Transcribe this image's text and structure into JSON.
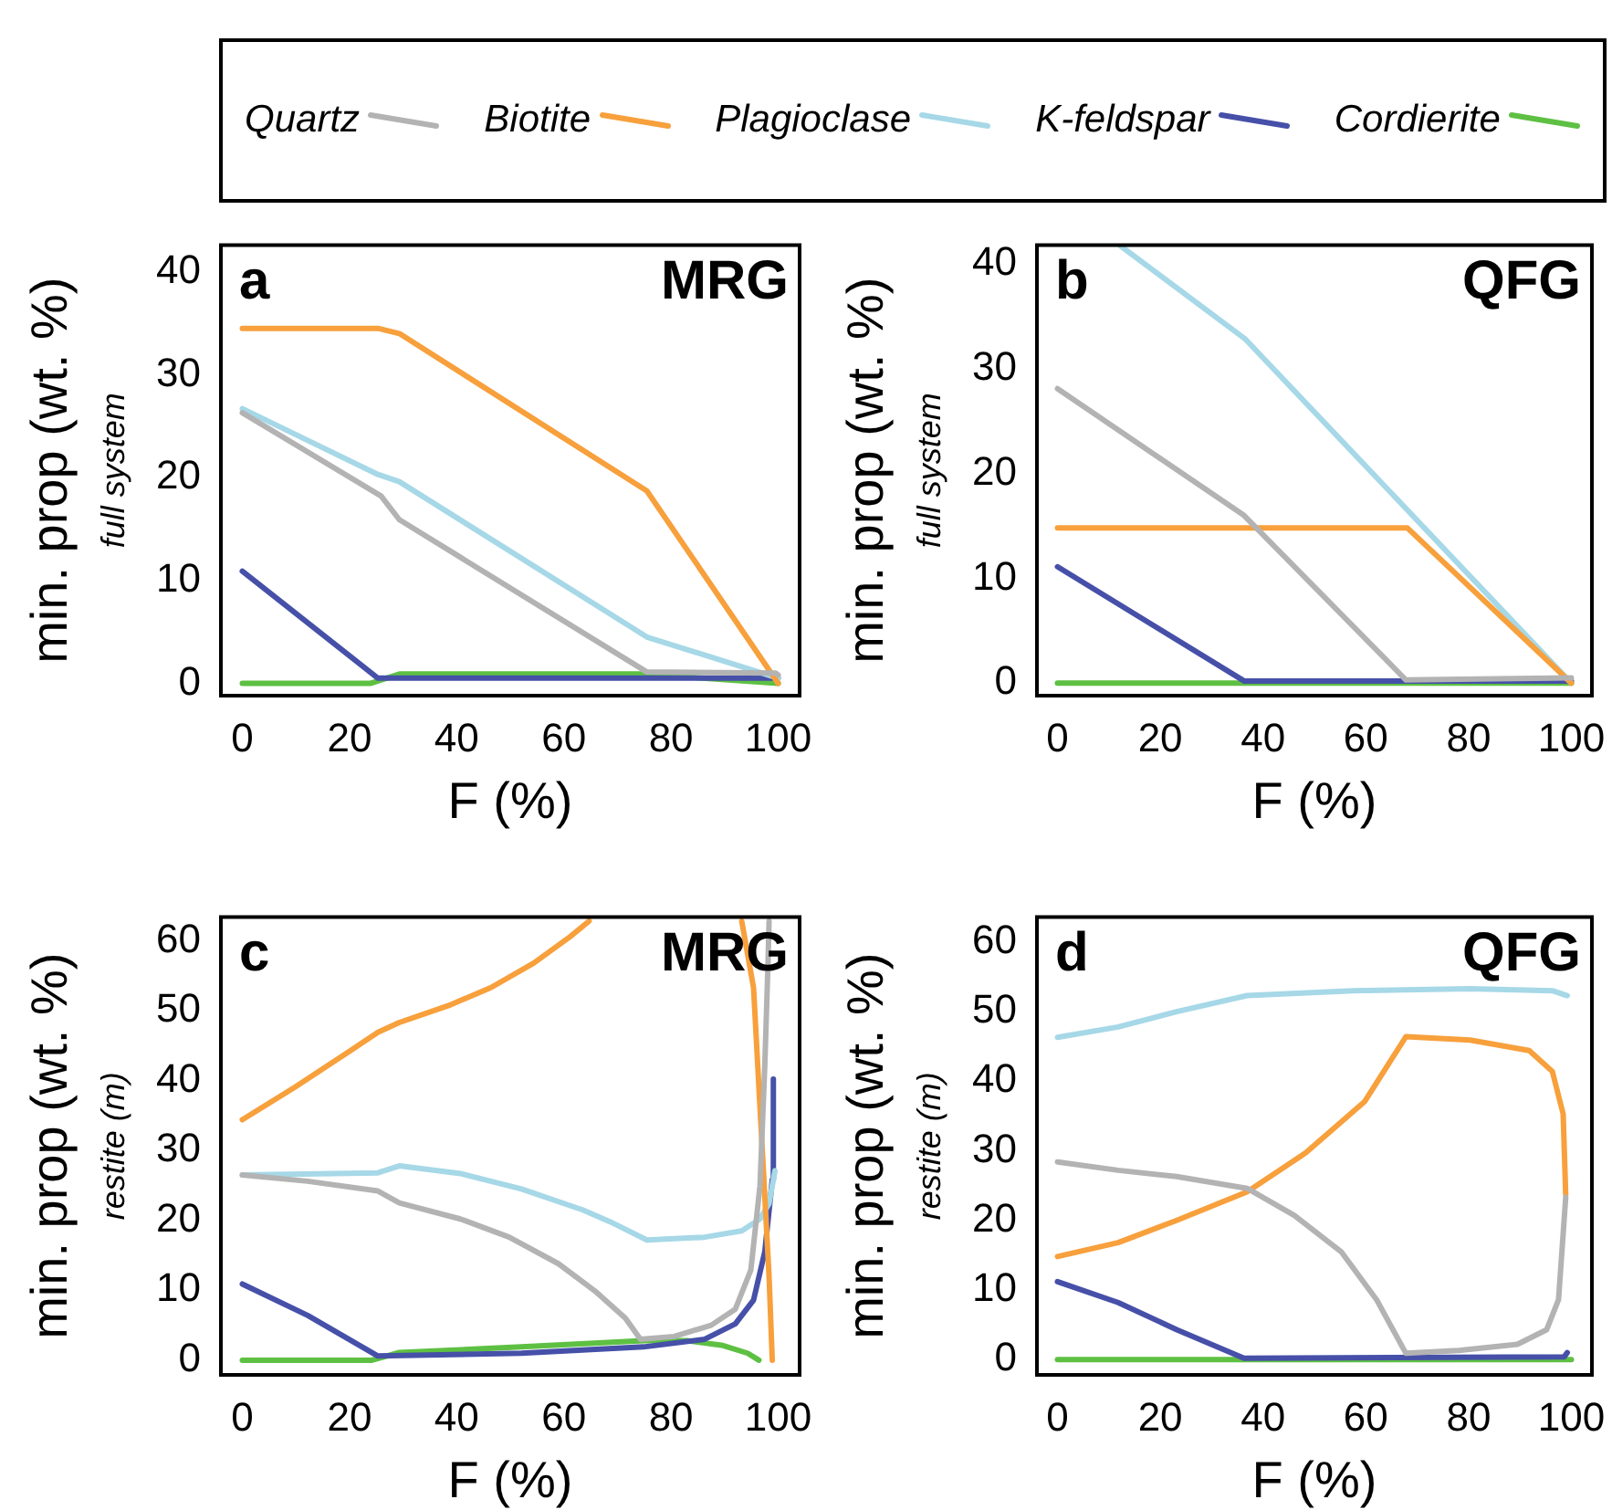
{
  "chart_data": [
    {
      "type": "line",
      "xlabel": "F (%)",
      "ylabel": "min. prop (wt. %)",
      "annotations": [
        "a",
        "MRG",
        "full system"
      ],
      "legend": "top",
      "marker": "none",
      "xlim": [
        -4,
        104
      ],
      "ylim": [
        -1.2,
        42.6
      ],
      "xticks": [
        0,
        20,
        40,
        60,
        80,
        100
      ],
      "yticks": [
        0,
        10,
        20,
        30,
        40
      ],
      "series": [
        {
          "name": "Quartz",
          "color": "#b3b3b3",
          "x": [
            0,
            25.9,
            29.3,
            75.5,
            99.5,
            100
          ],
          "values": [
            26.3,
            18.2,
            15.9,
            1.1,
            1.0,
            0.8
          ]
        },
        {
          "name": "Biotite",
          "color": "#f7a03c",
          "x": [
            0,
            25.3,
            29.3,
            75.5,
            100
          ],
          "values": [
            34.5,
            34.5,
            34.0,
            18.7,
            0
          ]
        },
        {
          "name": "Plagioclase",
          "color": "#a6d8e7",
          "x": [
            0,
            25.3,
            29.3,
            75.5,
            100
          ],
          "values": [
            26.7,
            20.3,
            19.6,
            4.5,
            0.5
          ]
        },
        {
          "name": "K-feldspar",
          "color": "#4650a8",
          "x": [
            0,
            25.3,
            100
          ],
          "values": [
            10.9,
            0.5,
            0.5
          ]
        },
        {
          "name": "Cordierite",
          "color": "#5ec043",
          "x": [
            0,
            24,
            29.3,
            75,
            100
          ],
          "values": [
            0,
            0,
            0.9,
            0.9,
            0
          ]
        }
      ]
    },
    {
      "type": "line",
      "xlabel": "F (%)",
      "ylabel": "min. prop (wt. %)",
      "annotations": [
        "b",
        "QFG",
        "full system"
      ],
      "marker": "none",
      "xlim": [
        -4,
        104
      ],
      "ylim": [
        -1.2,
        41.8
      ],
      "xticks": [
        0,
        20,
        40,
        60,
        80,
        100
      ],
      "yticks": [
        0,
        10,
        20,
        30,
        40
      ],
      "series": [
        {
          "color": "#b3b3b3",
          "x": [
            0,
            36.3,
            67.8,
            100
          ],
          "values": [
            28.1,
            16.0,
            0.3,
            0.5
          ]
        },
        {
          "color": "#f7a03c",
          "x": [
            0,
            68.1,
            100
          ],
          "values": [
            14.8,
            14.8,
            0
          ]
        },
        {
          "color": "#a6d8e7",
          "x": [
            12.3,
            36.6,
            100
          ],
          "values": [
            41.7,
            32.8,
            0
          ]
        },
        {
          "color": "#4650a8",
          "x": [
            0,
            36.3,
            100
          ],
          "values": [
            11.1,
            0.2,
            0.2
          ]
        },
        {
          "color": "#5ec043",
          "x": [
            0,
            100
          ],
          "values": [
            0,
            0
          ]
        }
      ]
    },
    {
      "type": "line",
      "xlabel": "F (%)",
      "ylabel": "min. prop (wt. %)",
      "annotations": [
        "c",
        "MRG",
        "restite (m)"
      ],
      "marker": "none",
      "xlim": [
        -4,
        104
      ],
      "ylim": [
        -2.1,
        63.4
      ],
      "xticks": [
        0,
        20,
        40,
        60,
        80,
        100
      ],
      "yticks": [
        0,
        10,
        20,
        30,
        40,
        50,
        60
      ],
      "series": [
        {
          "color": "#b3b3b3",
          "x": [
            0,
            12.2,
            25.3,
            29.3,
            40.7,
            49.8,
            59,
            65.8,
            71.5,
            74.3,
            80.6,
            87.5,
            92,
            94.9,
            96.6,
            97.5,
            98.1,
            98.3
          ],
          "values": [
            26.5,
            25.6,
            24.2,
            22.5,
            20.2,
            17.6,
            13.8,
            9.9,
            6.0,
            3.0,
            3.4,
            5.0,
            7.3,
            12.9,
            24.9,
            42.1,
            56.7,
            62.8
          ]
        },
        {
          "color": "#f7a03c",
          "x": [
            0,
            9.9,
            20.2,
            25.3,
            29.3,
            38.4,
            46.4,
            54.4,
            61.2,
            64.7,
            80,
            93.2,
            95.4,
            97.1,
            98.3,
            98.9
          ],
          "values": [
            34.4,
            39.1,
            44.3,
            46.9,
            48.3,
            50.7,
            53.3,
            56.8,
            60.6,
            62.8,
            null,
            62.8,
            53.3,
            29.2,
            12,
            0
          ]
        },
        {
          "color": "#a6d8e7",
          "x": [
            0,
            25.3,
            29.3,
            40.7,
            52.1,
            63.5,
            69.2,
            75.5,
            86.3,
            93.2,
            96.6,
            98.3,
            99.4
          ],
          "values": [
            26.5,
            26.8,
            27.8,
            26.7,
            24.5,
            21.5,
            19.6,
            17.2,
            17.6,
            18.5,
            20.2,
            22.4,
            27.1
          ]
        },
        {
          "color": "#4650a8",
          "x": [
            0,
            12.2,
            25.3,
            52.1,
            74.9,
            86.3,
            92,
            95.4,
            97.5,
            98.9,
            99.1
          ],
          "values": [
            10.9,
            6.4,
            0.6,
            1.0,
            1.9,
            3.0,
            5.2,
            8.6,
            15.5,
            25.8,
            40.2
          ]
        },
        {
          "color": "#5ec043",
          "x": [
            0,
            24.2,
            29.3,
            52.1,
            74.9,
            82.9,
            89.7,
            94.3,
            96.4
          ],
          "values": [
            0,
            0,
            1.1,
            1.9,
            2.8,
            2.8,
            2.1,
            1.0,
            0
          ]
        }
      ]
    },
    {
      "type": "line",
      "xlabel": "F (%)",
      "ylabel": "min. prop (wt. %)",
      "annotations": [
        "d",
        "QFG",
        "restite (m)"
      ],
      "marker": "none",
      "xlim": [
        -4,
        104
      ],
      "ylim": [
        -2.2,
        63.6
      ],
      "xticks": [
        0,
        20,
        40,
        60,
        80,
        100
      ],
      "yticks": [
        0,
        10,
        20,
        30,
        40,
        50,
        60
      ],
      "series": [
        {
          "color": "#b3b3b3",
          "x": [
            0,
            11.8,
            23.2,
            36.9,
            46.1,
            55.2,
            62.1,
            67.8,
            78.1,
            89.5,
            95.2,
            97.5,
            98.9
          ],
          "values": [
            28.4,
            27.2,
            26.3,
            24.6,
            20.7,
            15.5,
            8.6,
            0.9,
            1.3,
            2.2,
            4.3,
            8.6,
            23.3
          ]
        },
        {
          "color": "#f7a03c",
          "x": [
            0,
            11.8,
            23.2,
            36.9,
            48.3,
            59.8,
            67.8,
            80.3,
            91.8,
            96.3,
            98.4,
            98.9
          ],
          "values": [
            14.8,
            16.8,
            20,
            24.1,
            29.7,
            37.1,
            46.4,
            45.9,
            44.4,
            41.4,
            35.3,
            23.7
          ]
        },
        {
          "color": "#a6d8e7",
          "x": [
            0,
            11.8,
            23.2,
            36.9,
            57.5,
            80.3,
            96.3,
            99.2
          ],
          "values": [
            46.3,
            47.8,
            50,
            52.3,
            53,
            53.3,
            53,
            52.3
          ]
        },
        {
          "color": "#4650a8",
          "x": [
            0,
            11.8,
            23.2,
            36.3,
            98.6,
            99.2
          ],
          "values": [
            11.2,
            8.2,
            4.3,
            0.2,
            0.4,
            1.0
          ]
        },
        {
          "color": "#5ec043",
          "x": [
            0,
            100
          ],
          "values": [
            0,
            0
          ]
        }
      ]
    }
  ]
}
